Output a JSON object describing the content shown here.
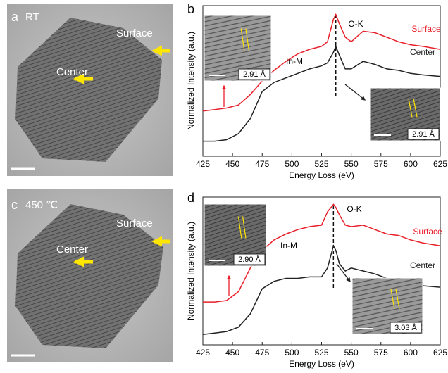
{
  "panels": [
    {
      "label": "a",
      "condition": "RT",
      "annotations": [
        "Surface",
        "Center"
      ]
    },
    {
      "label": "c",
      "condition": "450 ℃",
      "annotations": [
        "Surface",
        "Center"
      ]
    }
  ],
  "chart_data": [
    {
      "type": "line",
      "label": "b",
      "xlabel": "Energy Loss (eV)",
      "ylabel": "Normalized Intensity (a.u.)",
      "x": [
        425,
        435,
        445,
        455,
        465,
        475,
        485,
        495,
        505,
        515,
        525,
        530,
        535,
        537,
        540,
        545,
        550,
        560,
        570,
        580,
        590,
        600,
        610,
        625
      ],
      "series": [
        {
          "name": "Surface",
          "color": "#e8202a",
          "values": [
            30,
            31,
            32,
            34,
            41,
            50,
            57,
            63,
            68,
            71,
            73,
            76,
            91,
            94,
            88,
            79,
            76,
            83,
            82,
            79,
            76,
            74,
            73,
            71
          ]
        },
        {
          "name": "Center",
          "color": "#222222",
          "values": [
            10,
            10,
            11,
            15,
            25,
            43,
            49,
            52,
            55,
            58,
            60,
            62,
            69,
            73,
            67,
            58,
            58,
            63,
            61,
            58,
            57,
            55,
            54,
            53
          ]
        }
      ],
      "xlim": [
        425,
        625
      ],
      "xticks": [
        425,
        450,
        475,
        500,
        525,
        550,
        575,
        600,
        625
      ],
      "ylim": [
        0,
        100
      ],
      "reference_x": 537,
      "annotations": [
        "O-K",
        "In-M"
      ],
      "insets": [
        "2.91 Å",
        "2.91 Å"
      ]
    },
    {
      "type": "line",
      "label": "d",
      "xlabel": "Energy Loss (eV)",
      "ylabel": "Normalized Intensity (a.u.)",
      "x": [
        425,
        435,
        445,
        455,
        465,
        475,
        485,
        495,
        505,
        515,
        525,
        530,
        535,
        537,
        540,
        545,
        550,
        560,
        570,
        580,
        590,
        600,
        610,
        625
      ],
      "series": [
        {
          "name": "Surface",
          "color": "#e8202a",
          "values": [
            29,
            29,
            30,
            36,
            52,
            64,
            71,
            75,
            78,
            80,
            81,
            90,
            95,
            93,
            88,
            81,
            80,
            81,
            78,
            75,
            74,
            71,
            69,
            67
          ]
        },
        {
          "name": "Center",
          "color": "#222222",
          "values": [
            7,
            8,
            9,
            12,
            21,
            38,
            43,
            45,
            45,
            46,
            46,
            52,
            67,
            64,
            55,
            50,
            52,
            50,
            48,
            45,
            43,
            41,
            40,
            39
          ]
        }
      ],
      "xlim": [
        425,
        625
      ],
      "xticks": [
        425,
        450,
        475,
        500,
        525,
        550,
        575,
        600,
        625
      ],
      "ylim": [
        0,
        100
      ],
      "reference_x": 535,
      "annotations": [
        "O-K",
        "In-M"
      ],
      "insets": [
        "2.90 Å",
        "3.03 Å"
      ]
    }
  ]
}
